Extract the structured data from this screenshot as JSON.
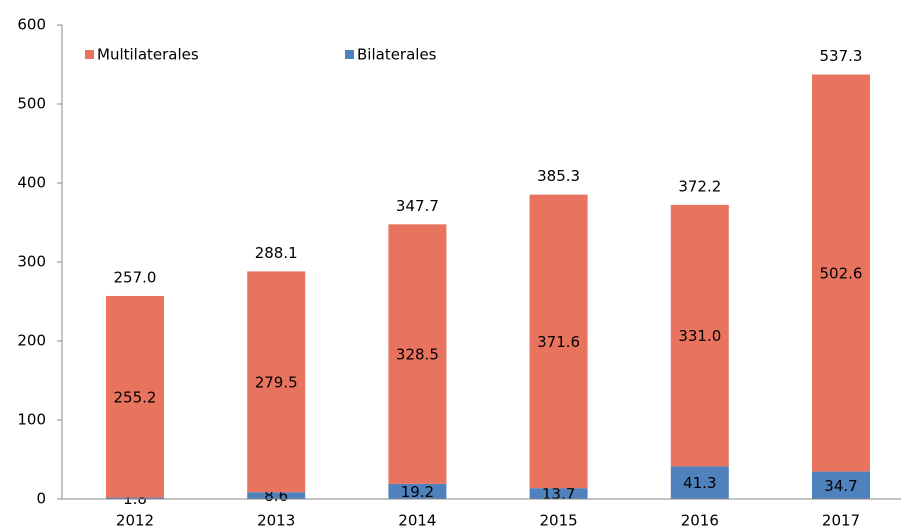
{
  "chart_data": {
    "type": "stacked_bar",
    "categories": [
      "2012",
      "2013",
      "2014",
      "2015",
      "2016",
      "2017"
    ],
    "series": [
      {
        "name": "Bilaterales",
        "color": "#4f81bd",
        "values": [
          1.8,
          8.6,
          19.2,
          13.7,
          41.3,
          34.7
        ]
      },
      {
        "name": "Multilaterales",
        "color": "#e8735f",
        "values": [
          255.2,
          279.5,
          328.5,
          371.6,
          331.0,
          502.6
        ],
        "value_labels": [
          "255.2",
          "279.5",
          "328.5",
          "371.6",
          "331.0",
          "502.6"
        ]
      }
    ],
    "totals": {
      "values": [
        257.0,
        288.1,
        347.7,
        385.3,
        372.2,
        537.3
      ],
      "value_labels": [
        "257.0",
        "288.1",
        "347.7",
        "385.3",
        "372.2",
        "537.3"
      ]
    },
    "legend_order": [
      1,
      0
    ],
    "legend": "top-left",
    "ylim": [
      0,
      600
    ],
    "yticks": [
      0,
      100,
      200,
      300,
      400,
      500,
      600
    ]
  }
}
